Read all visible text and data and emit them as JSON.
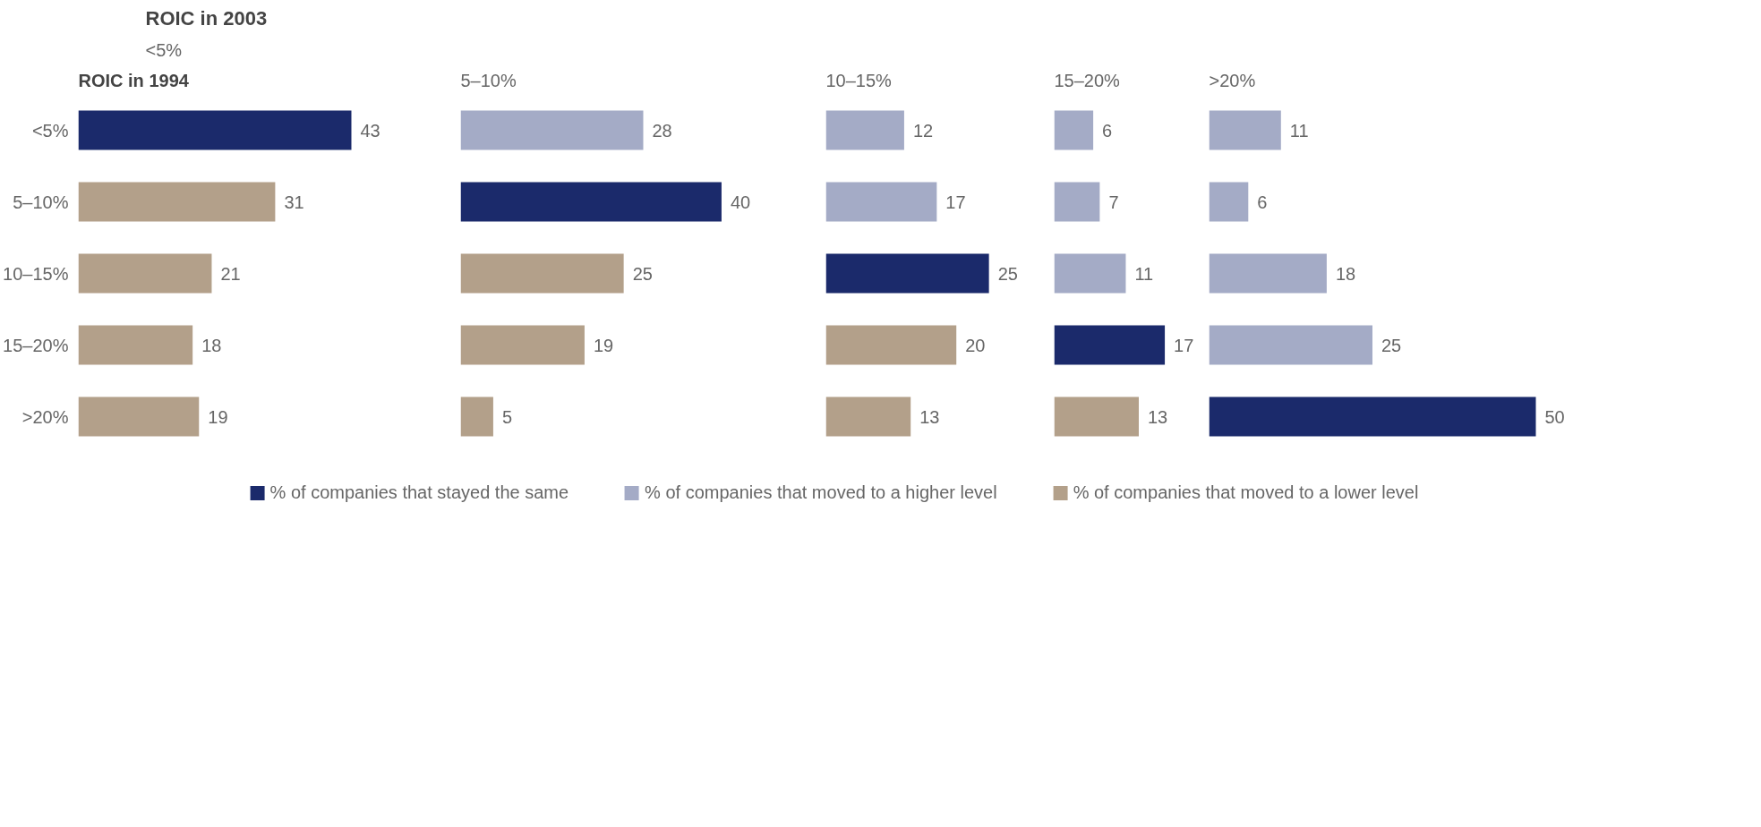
{
  "chart_data": [
    {
      "type": "bar",
      "orientation": "horizontal",
      "stacked": true,
      "title": "ROIC in 2003",
      "subtitle": "<5%",
      "ylabel": "ROIC in 1994",
      "categories": [
        "<5%",
        "5–10%",
        "10–15%",
        "15–20%",
        ">20%"
      ],
      "tick_labels": "y",
      "grid": false,
      "data_labels": true,
      "legend": "bottom",
      "series": [
        {
          "name": "% of companies that stayed the same",
          "color": "#1b2a6b",
          "values": [
            43,
            null,
            null,
            null,
            null
          ]
        },
        {
          "name": "% of companies that moved to a higher level",
          "color": "#a4abc6",
          "values": [
            null,
            null,
            null,
            null,
            null
          ]
        },
        {
          "name": "% of companies that moved to a lower level",
          "color": "#b3a08a",
          "values": [
            null,
            31,
            21,
            18,
            19
          ]
        }
      ]
    },
    {
      "type": "bar",
      "orientation": "horizontal",
      "stacked": true,
      "title": "5–10%",
      "categories": [
        null,
        null,
        null,
        null,
        null
      ],
      "tick_labels": false,
      "grid": false,
      "data_labels": true,
      "series": [
        {
          "color": "#1b2a6b",
          "values": [
            null,
            40,
            null,
            null,
            null
          ]
        },
        {
          "color": "#a4abc6",
          "values": [
            28,
            null,
            null,
            null,
            null
          ]
        },
        {
          "color": "#b3a08a",
          "values": [
            null,
            null,
            25,
            19,
            5
          ]
        }
      ]
    },
    {
      "type": "bar",
      "orientation": "horizontal",
      "stacked": true,
      "title": "10–15%",
      "categories": [
        null,
        null,
        null,
        null,
        null
      ],
      "tick_labels": false,
      "grid": false,
      "data_labels": true,
      "series": [
        {
          "color": "#1b2a6b",
          "values": [
            null,
            null,
            25,
            null,
            null
          ]
        },
        {
          "color": "#a4abc6",
          "values": [
            12,
            17,
            null,
            null,
            null
          ]
        },
        {
          "color": "#b3a08a",
          "values": [
            null,
            null,
            null,
            20,
            13
          ]
        }
      ]
    },
    {
      "type": "bar",
      "orientation": "horizontal",
      "stacked": true,
      "title": "15–20%",
      "categories": [
        null,
        null,
        null,
        null,
        null
      ],
      "tick_labels": false,
      "grid": false,
      "data_labels": true,
      "series": [
        {
          "color": "#1b2a6b",
          "values": [
            null,
            null,
            null,
            17,
            null
          ]
        },
        {
          "color": "#a4abc6",
          "values": [
            6,
            7,
            11,
            null,
            null
          ]
        },
        {
          "color": "#b3a08a",
          "values": [
            null,
            null,
            null,
            null,
            13
          ]
        }
      ]
    },
    {
      "type": "bar",
      "orientation": "horizontal",
      "stacked": true,
      "title": ">20%",
      "categories": [
        null,
        null,
        null,
        null,
        null
      ],
      "tick_labels": false,
      "grid": false,
      "data_labels": true,
      "series": [
        {
          "color": "#1b2a6b",
          "values": [
            null,
            null,
            null,
            null,
            50
          ]
        },
        {
          "color": "#a4abc6",
          "values": [
            11,
            6,
            18,
            25,
            null
          ]
        },
        {
          "color": "#b3a08a",
          "values": [
            null,
            null,
            null,
            null,
            null
          ]
        }
      ]
    }
  ]
}
